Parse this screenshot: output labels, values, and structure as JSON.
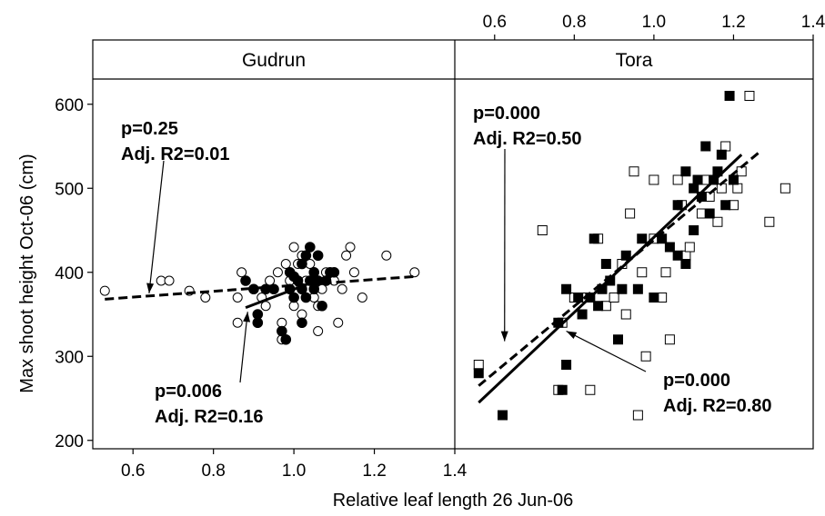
{
  "chart_data": {
    "type": "scatter",
    "xlabel": "Relative leaf length 26 Jun-06",
    "ylabel": "Max shoot height  Oct-06 (cm)",
    "ylim": [
      190,
      630
    ],
    "y_ticks": [
      "200",
      "300",
      "400",
      "500",
      "600"
    ],
    "panels": [
      {
        "strip": "Gudrun",
        "xlim": [
          0.5,
          1.4
        ],
        "x_ticks": [
          "0.6",
          "0.8",
          "1.0",
          "1.2",
          "1.4"
        ],
        "x_tick_values": [
          0.6,
          0.8,
          1.0,
          1.2,
          1.4
        ],
        "x_ticks_position": "bottom",
        "series": [
          {
            "marker": "open-circle",
            "points": [
              [
                0.53,
                378
              ],
              [
                0.67,
                390
              ],
              [
                0.69,
                390
              ],
              [
                0.74,
                378
              ],
              [
                0.78,
                370
              ],
              [
                0.86,
                340
              ],
              [
                0.86,
                370
              ],
              [
                0.87,
                400
              ],
              [
                0.9,
                380
              ],
              [
                0.92,
                370
              ],
              [
                0.93,
                360
              ],
              [
                0.95,
                380
              ],
              [
                0.96,
                400
              ],
              [
                0.97,
                340
              ],
              [
                0.97,
                320
              ],
              [
                0.98,
                410
              ],
              [
                0.99,
                390
              ],
              [
                1.0,
                430
              ],
              [
                1.0,
                360
              ],
              [
                1.01,
                410
              ],
              [
                1.02,
                350
              ],
              [
                1.02,
                420
              ],
              [
                1.04,
                410
              ],
              [
                1.05,
                370
              ],
              [
                1.06,
                330
              ],
              [
                1.07,
                380
              ],
              [
                1.08,
                400
              ],
              [
                1.1,
                390
              ],
              [
                1.11,
                340
              ],
              [
                1.12,
                380
              ],
              [
                1.13,
                420
              ],
              [
                1.14,
                430
              ],
              [
                1.15,
                400
              ],
              [
                1.17,
                370
              ],
              [
                1.23,
                420
              ],
              [
                1.3,
                400
              ],
              [
                0.88,
                390
              ],
              [
                0.94,
                390
              ],
              [
                1.03,
                390
              ],
              [
                1.06,
                360
              ]
            ]
          },
          {
            "marker": "filled-circle",
            "points": [
              [
                0.88,
                390
              ],
              [
                0.9,
                380
              ],
              [
                0.91,
                350
              ],
              [
                0.91,
                340
              ],
              [
                0.93,
                380
              ],
              [
                0.95,
                380
              ],
              [
                0.97,
                330
              ],
              [
                0.98,
                320
              ],
              [
                0.99,
                380
              ],
              [
                1.0,
                395
              ],
              [
                1.0,
                370
              ],
              [
                1.01,
                390
              ],
              [
                1.02,
                410
              ],
              [
                1.02,
                380
              ],
              [
                1.03,
                420
              ],
              [
                1.03,
                370
              ],
              [
                1.04,
                390
              ],
              [
                1.04,
                430
              ],
              [
                1.05,
                400
              ],
              [
                1.05,
                380
              ],
              [
                1.06,
                420
              ],
              [
                1.06,
                390
              ],
              [
                1.07,
                360
              ],
              [
                1.08,
                390
              ],
              [
                1.09,
                400
              ],
              [
                1.1,
                400
              ],
              [
                1.02,
                340
              ],
              [
                0.99,
                400
              ]
            ]
          }
        ],
        "fits": [
          {
            "style": "dashed",
            "x": [
              0.53,
              1.3
            ],
            "y": [
              368,
              395
            ]
          },
          {
            "style": "solid",
            "x": [
              0.88,
              1.1
            ],
            "y": [
              358,
              398
            ]
          }
        ],
        "annotations": [
          {
            "lines": [
              "p=0.25",
              "Adj. R2=0.01"
            ],
            "arrow_to_x": 0.64,
            "arrow_to_y": 375
          },
          {
            "lines": [
              "p=0.006",
              "Adj. R2=0.16"
            ],
            "arrow_to_x": 0.885,
            "arrow_to_y": 353
          }
        ]
      },
      {
        "strip": "Tora",
        "xlim": [
          0.5,
          1.4
        ],
        "x_ticks": [
          "0.6",
          "0.8",
          "1.0",
          "1.2",
          "1.4"
        ],
        "x_tick_values": [
          0.6,
          0.8,
          1.0,
          1.2,
          1.4
        ],
        "x_ticks_position": "top",
        "series": [
          {
            "marker": "open-square",
            "points": [
              [
                0.56,
                290
              ],
              [
                0.72,
                450
              ],
              [
                0.76,
                260
              ],
              [
                0.77,
                340
              ],
              [
                0.8,
                370
              ],
              [
                0.82,
                370
              ],
              [
                0.84,
                260
              ],
              [
                0.88,
                360
              ],
              [
                0.9,
                370
              ],
              [
                0.92,
                410
              ],
              [
                0.93,
                350
              ],
              [
                0.94,
                470
              ],
              [
                0.95,
                520
              ],
              [
                0.97,
                400
              ],
              [
                0.98,
                300
              ],
              [
                1.0,
                510
              ],
              [
                1.0,
                440
              ],
              [
                1.02,
                370
              ],
              [
                1.03,
                400
              ],
              [
                1.04,
                320
              ],
              [
                1.06,
                510
              ],
              [
                1.07,
                480
              ],
              [
                1.08,
                420
              ],
              [
                1.09,
                430
              ],
              [
                1.12,
                470
              ],
              [
                1.13,
                510
              ],
              [
                1.14,
                490
              ],
              [
                1.16,
                460
              ],
              [
                1.17,
                500
              ],
              [
                1.18,
                550
              ],
              [
                1.2,
                480
              ],
              [
                1.21,
                500
              ],
              [
                1.22,
                520
              ],
              [
                1.24,
                610
              ],
              [
                1.29,
                460
              ],
              [
                1.33,
                500
              ],
              [
                0.96,
                230
              ],
              [
                0.86,
                440
              ]
            ]
          },
          {
            "marker": "filled-square",
            "points": [
              [
                0.56,
                280
              ],
              [
                0.62,
                230
              ],
              [
                0.76,
                340
              ],
              [
                0.78,
                290
              ],
              [
                0.77,
                260
              ],
              [
                0.78,
                380
              ],
              [
                0.81,
                370
              ],
              [
                0.82,
                350
              ],
              [
                0.84,
                370
              ],
              [
                0.85,
                440
              ],
              [
                0.86,
                360
              ],
              [
                0.87,
                380
              ],
              [
                0.88,
                410
              ],
              [
                0.89,
                390
              ],
              [
                0.91,
                320
              ],
              [
                0.92,
                380
              ],
              [
                0.93,
                420
              ],
              [
                0.96,
                380
              ],
              [
                0.97,
                440
              ],
              [
                1.0,
                370
              ],
              [
                1.02,
                440
              ],
              [
                1.04,
                430
              ],
              [
                1.06,
                420
              ],
              [
                1.08,
                410
              ],
              [
                1.08,
                520
              ],
              [
                1.1,
                500
              ],
              [
                1.11,
                510
              ],
              [
                1.12,
                490
              ],
              [
                1.13,
                550
              ],
              [
                1.14,
                470
              ],
              [
                1.15,
                510
              ],
              [
                1.16,
                520
              ],
              [
                1.17,
                540
              ],
              [
                1.18,
                480
              ],
              [
                1.19,
                610
              ],
              [
                1.2,
                510
              ],
              [
                1.1,
                450
              ],
              [
                1.06,
                480
              ]
            ]
          }
        ],
        "fits": [
          {
            "style": "dashed",
            "x": [
              0.56,
              1.27
            ],
            "y": [
              265,
              545
            ]
          },
          {
            "style": "solid",
            "x": [
              0.56,
              1.22
            ],
            "y": [
              245,
              540
            ]
          }
        ],
        "annotations": [
          {
            "lines": [
              "p=0.000",
              "Adj. R2=0.50"
            ],
            "arrow_to_x": 0.625,
            "arrow_to_y": 318
          },
          {
            "lines": [
              "p=0.000",
              "Adj. R2=0.80"
            ],
            "arrow_to_x": 0.78,
            "arrow_to_y": 330
          }
        ]
      }
    ]
  }
}
